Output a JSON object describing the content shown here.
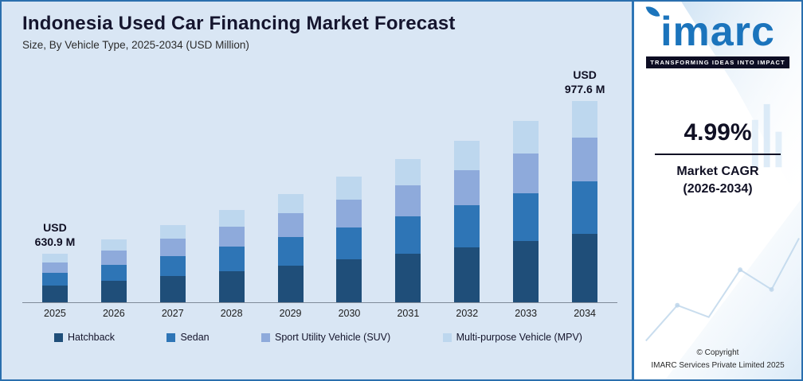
{
  "header": {
    "title": "Indonesia Used Car Financing Market Forecast",
    "subtitle": "Size, By Vehicle Type, 2025-2034 (USD Million)"
  },
  "chart_data": {
    "type": "bar",
    "stacked": true,
    "title": "Indonesia Used Car Financing Market Forecast",
    "subtitle": "Size, By Vehicle Type, 2025-2034 (USD Million)",
    "unit": "USD Million",
    "categories": [
      "2025",
      "2026",
      "2027",
      "2028",
      "2029",
      "2030",
      "2031",
      "2032",
      "2033",
      "2034"
    ],
    "series": [
      {
        "key": "hatchback",
        "name": "Hatchback",
        "color": "#1f4e79",
        "values": [
          214.5,
          225.2,
          236.4,
          248.2,
          260.6,
          273.6,
          287.3,
          301.6,
          316.7,
          332.4
        ]
      },
      {
        "key": "sedan",
        "name": "Sedan",
        "color": "#2e75b6",
        "values": [
          164.0,
          172.2,
          180.8,
          189.8,
          199.3,
          209.2,
          219.7,
          230.7,
          242.2,
          254.2
        ]
      },
      {
        "key": "suv",
        "name": "Sport Utility Vehicle (SUV)",
        "color": "#8eaadb",
        "values": [
          138.8,
          145.7,
          153.0,
          160.6,
          168.7,
          177.1,
          185.9,
          195.2,
          204.9,
          215.1
        ]
      },
      {
        "key": "mpv",
        "name": "Multi-purpose Vehicle (MPV)",
        "color": "#bdd7ee",
        "values": [
          113.6,
          119.2,
          125.2,
          131.4,
          138.0,
          144.9,
          152.1,
          159.7,
          167.7,
          176.0
        ]
      }
    ],
    "totals": [
      630.9,
      662.4,
      695.4,
      730.1,
      766.6,
      804.8,
      845.0,
      887.2,
      931.5,
      977.6
    ],
    "annotations": [
      {
        "category": "2025",
        "lines": [
          "USD",
          "630.9 M"
        ]
      },
      {
        "category": "2034",
        "lines": [
          "USD",
          "977.6 M"
        ]
      }
    ],
    "legend_position": "bottom",
    "grid": false,
    "y_axis_visible": false,
    "display_range": [
      520,
      990
    ]
  },
  "panel": {
    "logo_text": "imarc",
    "tagline": "TRANSFORMING IDEAS INTO IMPACT",
    "cagr_value": "4.99%",
    "cagr_label_line1": "Market CAGR",
    "cagr_label_line2": "(2026-2034)",
    "copyright_line1": "© Copyright",
    "copyright_line2": "IMARC Services Private Limited 2025"
  },
  "colors": {
    "chart_background": "#d9e6f4",
    "accent_blue": "#1b74bc",
    "panel_divider": "#2e75b6",
    "tagline_background": "#0d0d23"
  }
}
